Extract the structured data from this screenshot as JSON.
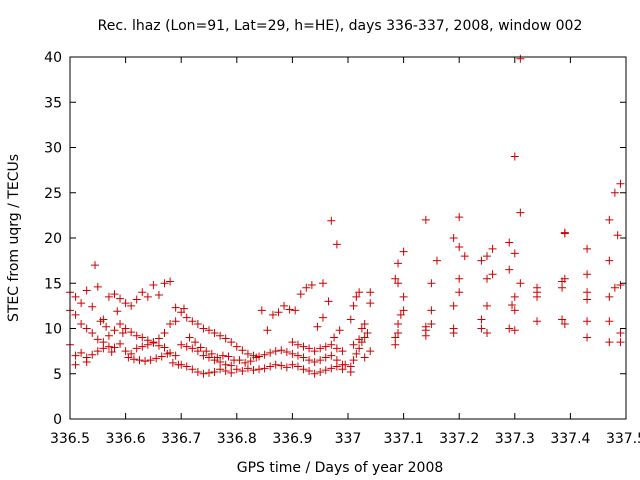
{
  "chart_data": {
    "type": "scatter",
    "title": "Rec. lhaz (Lon=91, Lat=29, h=HE), days 336-337, 2008, window 002",
    "xlabel": "GPS time / Days of year 2008",
    "ylabel": "STEC from uqrg / TECUs",
    "xlim": [
      336.5,
      337.5
    ],
    "ylim": [
      0,
      40
    ],
    "xticks": [
      336.5,
      336.6,
      336.7,
      336.8,
      336.9,
      337.0,
      337.1,
      337.2,
      337.3,
      337.4,
      337.5
    ],
    "xtick_labels": [
      "336.5",
      "336.6",
      "336.7",
      "336.8",
      "336.9",
      "337",
      "337.1",
      "337.2",
      "337.3",
      "337.4",
      "337.5"
    ],
    "yticks": [
      0,
      5,
      10,
      15,
      20,
      25,
      30,
      35,
      40
    ],
    "ytick_labels": [
      "0",
      "5",
      "10",
      "15",
      "20",
      "25",
      "30",
      "35",
      "40"
    ],
    "grid": false,
    "marker": "+",
    "color": "#cc0000",
    "x": [
      336.5,
      336.51,
      336.52,
      336.53,
      336.54,
      336.55,
      336.56,
      336.57,
      336.58,
      336.59,
      336.5,
      336.51,
      336.52,
      336.53,
      336.54,
      336.55,
      336.56,
      336.57,
      336.58,
      336.59,
      336.5,
      336.51,
      336.52,
      336.53,
      336.54,
      336.55,
      336.56,
      336.57,
      336.58,
      336.59,
      336.51,
      336.53,
      336.545,
      336.555,
      336.565,
      336.575,
      336.585,
      336.595,
      336.6,
      336.61,
      336.62,
      336.63,
      336.64,
      336.65,
      336.66,
      336.67,
      336.68,
      336.69,
      336.6,
      336.61,
      336.62,
      336.63,
      336.64,
      336.65,
      336.66,
      336.67,
      336.68,
      336.69,
      336.6,
      336.61,
      336.62,
      336.63,
      336.64,
      336.65,
      336.66,
      336.67,
      336.68,
      336.69,
      336.605,
      336.615,
      336.625,
      336.635,
      336.645,
      336.655,
      336.665,
      336.675,
      336.685,
      336.695,
      336.7,
      336.71,
      336.72,
      336.73,
      336.74,
      336.75,
      336.76,
      336.77,
      336.78,
      336.79,
      336.7,
      336.71,
      336.72,
      336.73,
      336.74,
      336.75,
      336.76,
      336.77,
      336.78,
      336.79,
      336.7,
      336.71,
      336.72,
      336.73,
      336.74,
      336.75,
      336.76,
      336.77,
      336.78,
      336.79,
      336.705,
      336.715,
      336.725,
      336.735,
      336.745,
      336.755,
      336.765,
      336.775,
      336.785,
      336.795,
      336.8,
      336.81,
      336.82,
      336.83,
      336.84,
      336.85,
      336.86,
      336.87,
      336.88,
      336.89,
      336.8,
      336.81,
      336.82,
      336.83,
      336.84,
      336.85,
      336.86,
      336.87,
      336.88,
      336.89,
      336.805,
      336.815,
      336.825,
      336.835,
      336.845,
      336.855,
      336.865,
      336.875,
      336.885,
      336.895,
      336.9,
      336.91,
      336.92,
      336.93,
      336.94,
      336.95,
      336.96,
      336.97,
      336.98,
      336.99,
      336.9,
      336.91,
      336.92,
      336.93,
      336.94,
      336.95,
      336.96,
      336.97,
      336.98,
      336.99,
      336.9,
      336.91,
      336.92,
      336.93,
      336.94,
      336.95,
      336.96,
      336.97,
      336.98,
      336.99,
      336.905,
      336.915,
      336.925,
      336.935,
      336.945,
      336.955,
      336.965,
      336.975,
      336.985,
      336.995,
      336.97,
      336.98,
      336.955,
      337.005,
      337.005,
      337.01,
      337.015,
      337.02,
      337.025,
      337.03,
      337.035,
      337.005,
      337.01,
      337.015,
      337.02,
      337.025,
      337.03,
      337.04,
      337.04,
      337.01,
      337.02,
      337.03,
      337.04,
      337.085,
      337.085,
      337.09,
      337.09,
      337.095,
      337.1,
      337.1,
      337.085,
      337.09,
      337.1,
      337.09,
      337.14,
      337.14,
      337.15,
      337.15,
      337.15,
      337.16,
      337.14,
      337.14,
      337.19,
      337.19,
      337.2,
      337.2,
      337.21,
      337.19,
      337.2,
      337.2,
      337.19,
      337.24,
      337.24,
      337.25,
      337.25,
      337.26,
      337.24,
      337.26,
      337.25,
      337.25,
      337.29,
      337.3,
      337.3,
      337.31,
      337.29,
      337.3,
      337.29,
      337.31,
      337.3,
      337.31,
      337.3,
      337.295,
      337.34,
      337.34,
      337.34,
      337.34,
      337.385,
      337.385,
      337.39,
      337.39,
      337.39,
      337.39,
      337.385,
      337.43,
      337.43,
      337.43,
      337.43,
      337.43,
      337.43,
      337.47,
      337.47,
      337.47,
      337.47,
      337.47,
      337.48,
      337.48,
      337.485,
      337.49,
      337.49,
      337.49,
      337.49
    ],
    "y": [
      8.2,
      7.0,
      7.3,
      6.8,
      7.1,
      7.5,
      7.8,
      8.0,
      7.9,
      8.3,
      12.0,
      11.5,
      10.5,
      10.0,
      9.5,
      8.8,
      8.5,
      9.2,
      9.8,
      10.5,
      14.0,
      13.5,
      12.8,
      14.2,
      12.4,
      14.6,
      11.0,
      13.5,
      13.8,
      13.3,
      6.0,
      6.3,
      17.0,
      10.8,
      10.2,
      7.4,
      11.9,
      9.5,
      7.5,
      7.2,
      7.8,
      8.0,
      8.2,
      8.4,
      8.1,
      7.9,
      7.3,
      7.0,
      10.0,
      9.6,
      9.2,
      9.0,
      8.7,
      8.5,
      8.9,
      9.5,
      10.5,
      10.8,
      12.8,
      12.5,
      13.2,
      14.0,
      13.5,
      14.8,
      13.7,
      15.0,
      15.2,
      12.3,
      6.8,
      6.6,
      6.5,
      6.4,
      6.5,
      6.7,
      6.9,
      7.2,
      6.2,
      6.0,
      6.0,
      5.8,
      5.5,
      5.2,
      5.0,
      5.1,
      5.2,
      5.5,
      5.3,
      5.1,
      8.2,
      8.0,
      7.8,
      7.5,
      7.0,
      6.8,
      6.5,
      6.3,
      6.0,
      5.9,
      11.8,
      11.2,
      10.8,
      10.5,
      10.0,
      9.8,
      9.5,
      9.2,
      8.9,
      8.5,
      12.2,
      9.0,
      8.5,
      7.9,
      7.5,
      7.2,
      6.8,
      7.0,
      6.9,
      6.5,
      5.5,
      5.3,
      5.6,
      5.4,
      5.5,
      5.6,
      5.8,
      6.0,
      5.9,
      5.7,
      8.0,
      7.6,
      7.2,
      7.0,
      6.9,
      7.1,
      7.3,
      7.5,
      7.6,
      7.4,
      6.5,
      6.2,
      6.4,
      6.8,
      12.0,
      9.8,
      11.5,
      11.8,
      12.5,
      12.1,
      6.0,
      5.8,
      5.5,
      5.3,
      5.0,
      5.2,
      5.4,
      5.6,
      5.8,
      5.5,
      7.2,
      7.0,
      6.8,
      6.5,
      6.3,
      6.5,
      6.8,
      7.0,
      6.5,
      6.0,
      8.5,
      8.2,
      8.0,
      7.8,
      7.5,
      7.8,
      8.0,
      8.2,
      7.8,
      7.5,
      12.0,
      13.8,
      14.5,
      14.8,
      10.2,
      11.2,
      13.0,
      9.0,
      9.8,
      6.0,
      21.9,
      19.3,
      15.0,
      5.2,
      5.8,
      6.5,
      7.2,
      7.8,
      8.5,
      9.0,
      9.5,
      11.0,
      12.5,
      13.5,
      14.0,
      10.0,
      10.5,
      12.8,
      14.0,
      8.2,
      8.8,
      6.8,
      7.5,
      8.2,
      9.0,
      9.5,
      10.5,
      11.5,
      12.0,
      13.5,
      15.5,
      17.2,
      18.5,
      15.0,
      9.8,
      10.2,
      10.5,
      12.0,
      15.0,
      17.5,
      22.0,
      9.2,
      9.5,
      10.0,
      14.0,
      15.5,
      18.0,
      20.0,
      22.3,
      19.0,
      12.5,
      10.0,
      11.0,
      12.5,
      15.5,
      16.0,
      17.5,
      18.8,
      18.0,
      9.5,
      10.0,
      12.0,
      13.5,
      15.0,
      16.5,
      18.3,
      19.5,
      22.8,
      29.0,
      39.8,
      9.8,
      12.6,
      10.8,
      13.5,
      14.0,
      14.5,
      11.0,
      14.5,
      15.5,
      20.5,
      20.6,
      10.5,
      15.2,
      9.0,
      10.8,
      13.2,
      14.0,
      16.0,
      18.8,
      8.5,
      10.8,
      13.5,
      17.5,
      22.0,
      25.0,
      14.5,
      20.3,
      8.5,
      9.5,
      14.8,
      26.0
    ]
  }
}
